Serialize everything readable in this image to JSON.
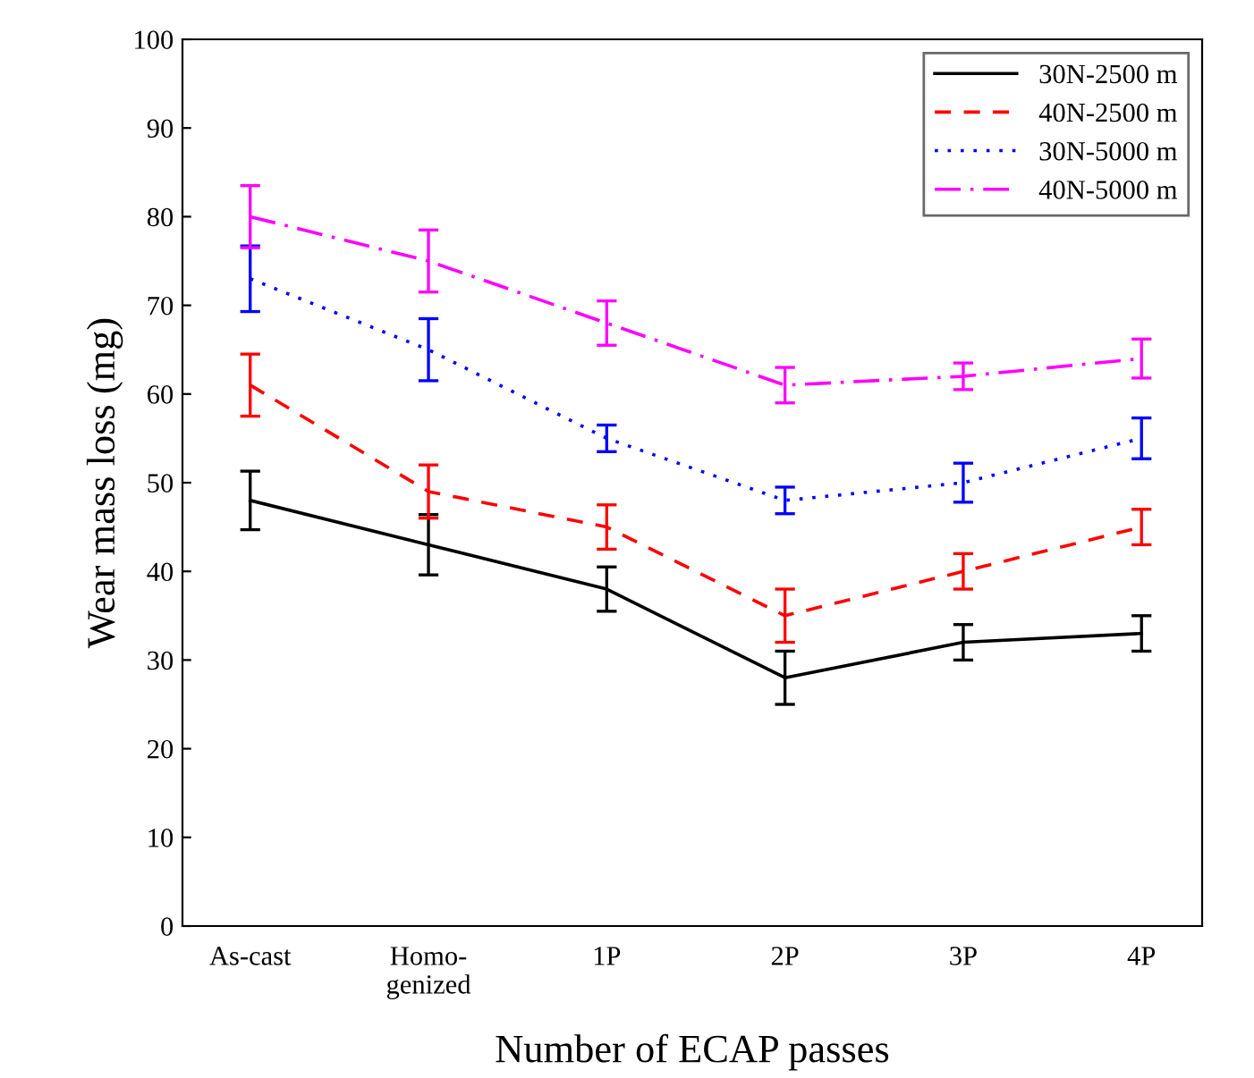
{
  "chart_data": {
    "type": "line",
    "xlabel": "Number of ECAP passes",
    "ylabel": "Wear mass loss (mg)",
    "categories": [
      "As-cast",
      "Homo-\ngenized",
      "1P",
      "2P",
      "3P",
      "4P"
    ],
    "ylim": [
      0,
      100
    ],
    "yticks": [
      0,
      10,
      20,
      30,
      40,
      50,
      60,
      70,
      80,
      90,
      100
    ],
    "grid": false,
    "legend": "top right",
    "marker": "none",
    "series": [
      {
        "name": "30N-2500 m",
        "color": "#000000",
        "line_style": "solid",
        "values": [
          48,
          43,
          38,
          28,
          32,
          33
        ],
        "errors": [
          3.3,
          3.4,
          2.5,
          3,
          2,
          2
        ]
      },
      {
        "name": "40N-2500 m",
        "color": "#ff0000",
        "line_style": "dashed",
        "values": [
          61,
          49,
          45,
          35,
          40,
          45
        ],
        "errors": [
          3.5,
          3,
          2.5,
          3,
          2,
          2
        ]
      },
      {
        "name": "30N-5000 m",
        "color": "#0000ff",
        "line_style": "dotted",
        "values": [
          73,
          65,
          55,
          48,
          50,
          55
        ],
        "errors": [
          3.7,
          3.5,
          1.5,
          1.5,
          2.2,
          2.3
        ]
      },
      {
        "name": "40N-5000 m",
        "color": "#ff00ff",
        "line_style": "dashdot",
        "values": [
          80,
          75,
          68,
          61,
          62,
          64
        ],
        "errors": [
          3.5,
          3.5,
          2.5,
          2,
          1.5,
          2.2
        ]
      }
    ]
  }
}
